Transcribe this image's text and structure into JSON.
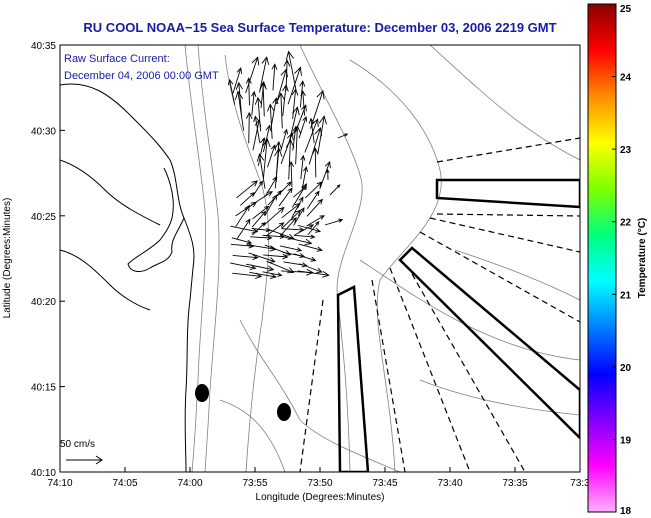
{
  "title": "RU COOL  NOAA−15  Sea Surface Temperature:  December 03, 2006 2219 GMT",
  "annotation": {
    "line1": "Raw Surface Current:",
    "line2": "December 04, 2006 00:00 GMT"
  },
  "scale_label": "50 cm/s",
  "xaxis": {
    "label": "Longitude (Degrees:Minutes)",
    "ticks": [
      "74:10",
      "74:05",
      "74:00",
      "73:55",
      "73:50",
      "73:45",
      "73:40",
      "73:35",
      "73:3"
    ]
  },
  "yaxis": {
    "label": "Latitude (Degrees:Minutes)",
    "ticks": [
      "40:35",
      "40:30",
      "40:25",
      "40:20",
      "40:15",
      "40:10"
    ]
  },
  "colorbar": {
    "label": "Temperature (°C)",
    "ticks": [
      "25",
      "24",
      "23",
      "22",
      "21",
      "20",
      "19",
      "18"
    ],
    "colors": [
      "#8b0000",
      "#ff0000",
      "#ff8c00",
      "#ffff00",
      "#7fff00",
      "#00ff7f",
      "#00ffff",
      "#0080ff",
      "#0000ff",
      "#8000ff",
      "#ff00ff",
      "#ffb0ff"
    ]
  },
  "colors": {
    "title": "#1a1aa8",
    "coast": "#000000",
    "contours": "#808080",
    "vectors": "#000000"
  }
}
